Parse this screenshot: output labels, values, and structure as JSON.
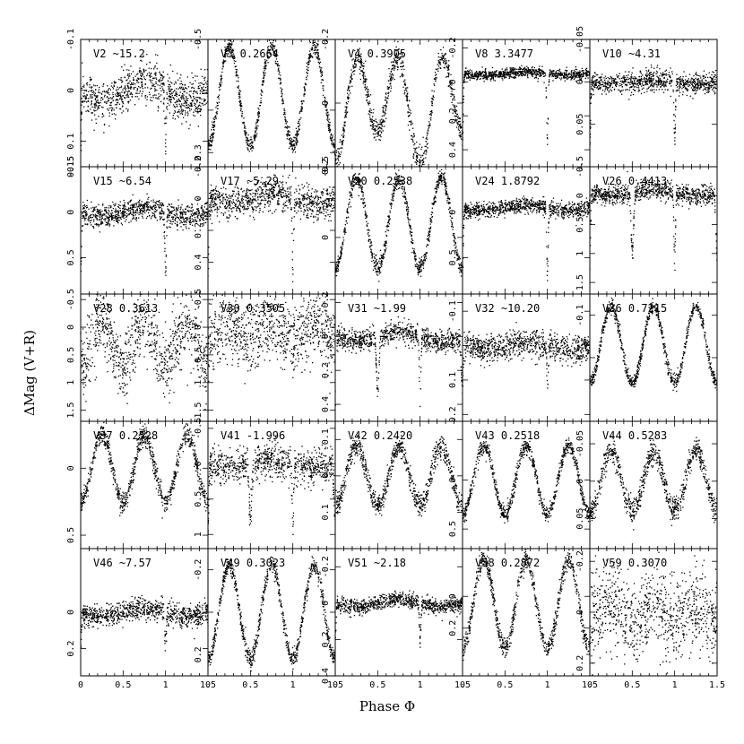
{
  "chart_data": {
    "type": "scatter",
    "xlabel": "Phase Φ",
    "ylabel": "ΔMag (V+R)",
    "xlim": [
      0,
      1.5
    ],
    "x_ticks": [
      "0",
      "0.5",
      "1",
      "1.5"
    ],
    "grid": false,
    "panels": [
      {
        "name": "V2",
        "period": "~15.2",
        "ylim": [
          -0.1,
          0.15
        ],
        "yticks": [
          {
            "v": -0.1,
            "t": "-0.1"
          },
          {
            "v": 0,
            "t": "0"
          },
          {
            "v": 0.1,
            "t": "0.1"
          },
          {
            "v": 0.15,
            "t": "0.15"
          }
        ],
        "model": "ecl",
        "amp": 0.02,
        "depth": 0.1,
        "noise": 0.02,
        "base": 0.0
      },
      {
        "name": "V3",
        "period": "0.2664",
        "ylim": [
          -0.5,
          0.4
        ],
        "yticks": [
          {
            "v": -0.5,
            "t": "-0.5"
          },
          {
            "v": 0,
            "t": "0"
          },
          {
            "v": 0.3,
            "t": "0.3"
          }
        ],
        "model": "wuma",
        "amp": 0.35,
        "depth": 0,
        "noise": 0.03,
        "base": -0.1
      },
      {
        "name": "V4",
        "period": "0.3905",
        "ylim": [
          -0.2,
          0.2
        ],
        "yticks": [
          {
            "v": -0.2,
            "t": "-0.2"
          },
          {
            "v": 0,
            "t": "0"
          },
          {
            "v": 0.2,
            "t": "0.2"
          }
        ],
        "model": "wuma",
        "amp": 0.14,
        "depth": 0.05,
        "noise": 0.02,
        "base": 0.0
      },
      {
        "name": "V8",
        "period": "3.3477",
        "ylim": [
          -0.25,
          0.5
        ],
        "yticks": [
          {
            "v": -0.2,
            "t": "-0.2"
          },
          {
            "v": 0,
            "t": "0"
          },
          {
            "v": 0.2,
            "t": "0.2"
          },
          {
            "v": 0.4,
            "t": "0.4"
          }
        ],
        "model": "ecl",
        "amp": 0.01,
        "depth": 0.4,
        "noise": 0.015,
        "base": -0.05
      },
      {
        "name": "V10",
        "period": "~4.31",
        "ylim": [
          -0.05,
          0.1
        ],
        "yticks": [
          {
            "v": -0.05,
            "t": "-0.05"
          },
          {
            "v": 0,
            "t": "0"
          },
          {
            "v": 0.05,
            "t": "0.05"
          }
        ],
        "model": "ecl",
        "amp": 0.003,
        "depth": 0.07,
        "noise": 0.006,
        "base": 0.0
      },
      {
        "name": "V15",
        "period": "~6.54",
        "ylim": [
          -0.5,
          0.9
        ],
        "yticks": [
          {
            "v": -0.5,
            "t": "-0.5"
          },
          {
            "v": 0,
            "t": "0"
          },
          {
            "v": 0.5,
            "t": "0.5"
          }
        ],
        "model": "ecl",
        "amp": 0.05,
        "depth": 0.7,
        "noise": 0.06,
        "base": 0.0
      },
      {
        "name": "V17",
        "period": "~5.29",
        "ylim": [
          -0.2,
          0.6
        ],
        "yticks": [
          {
            "v": -0.2,
            "t": "-0.2"
          },
          {
            "v": 0,
            "t": "0"
          },
          {
            "v": 0.2,
            "t": "0.2"
          },
          {
            "v": 0.4,
            "t": "0.4"
          }
        ],
        "model": "ecl",
        "amp": 0.03,
        "depth": 0.45,
        "noise": 0.05,
        "base": 0.0
      },
      {
        "name": "V20",
        "period": "0.2538",
        "ylim": [
          -0.5,
          0.4
        ],
        "yticks": [
          {
            "v": -0.5,
            "t": "-0.5"
          },
          {
            "v": 0,
            "t": "0"
          }
        ],
        "model": "wuma",
        "amp": 0.32,
        "depth": 0,
        "noise": 0.03,
        "base": -0.1
      },
      {
        "name": "V24",
        "period": "1.8792",
        "ylim": [
          -0.5,
          0.9
        ],
        "yticks": [
          {
            "v": 0,
            "t": "0"
          },
          {
            "v": 0.5,
            "t": "0.5"
          }
        ],
        "model": "ecl",
        "amp": 0.03,
        "depth": 0.75,
        "noise": 0.04,
        "base": -0.05
      },
      {
        "name": "V26",
        "period": "0.4413",
        "ylim": [
          -0.5,
          1.7
        ],
        "yticks": [
          {
            "v": -0.5,
            "t": "-0.5"
          },
          {
            "v": 0,
            "t": "0"
          },
          {
            "v": 0.5,
            "t": "0.5"
          },
          {
            "v": 1,
            "t": "1"
          },
          {
            "v": 1.5,
            "t": "1.5"
          }
        ],
        "model": "ecl2",
        "amp": 0.05,
        "depth": 1.2,
        "noise": 0.08,
        "base": -0.05
      },
      {
        "name": "V28",
        "period": "0.3613",
        "ylim": [
          -0.6,
          1.7
        ],
        "yticks": [
          {
            "v": -0.5,
            "t": "-0.5"
          },
          {
            "v": 0,
            "t": "0"
          },
          {
            "v": 0.5,
            "t": "0.5"
          },
          {
            "v": 1,
            "t": "1"
          },
          {
            "v": 1.5,
            "t": "1.5"
          }
        ],
        "model": "wuma",
        "amp": 0.4,
        "depth": 0,
        "noise": 0.3,
        "base": 0.3
      },
      {
        "name": "V30",
        "period": "0.3505",
        "ylim": [
          -0.6,
          1.7
        ],
        "yticks": [
          {
            "v": -0.5,
            "t": "-0.5"
          },
          {
            "v": 0,
            "t": "0"
          },
          {
            "v": 0.5,
            "t": "0.5"
          },
          {
            "v": 1,
            "t": "1"
          },
          {
            "v": 1.5,
            "t": "1.5"
          }
        ],
        "model": "wuma",
        "amp": 0.15,
        "depth": 0,
        "noise": 0.3,
        "base": 0.1
      },
      {
        "name": "V31",
        "period": "~1.99",
        "ylim": [
          -0.25,
          0.5
        ],
        "yticks": [
          {
            "v": -0.2,
            "t": "-0.2"
          },
          {
            "v": 0,
            "t": "0"
          },
          {
            "v": 0.2,
            "t": "0.2"
          },
          {
            "v": 0.4,
            "t": "0.4"
          }
        ],
        "model": "ecl2",
        "amp": 0.03,
        "depth": 0.4,
        "noise": 0.03,
        "base": 0.0
      },
      {
        "name": "V32",
        "period": "~10.20",
        "ylim": [
          -0.15,
          0.22
        ],
        "yticks": [
          {
            "v": -0.1,
            "t": "-0.1"
          },
          {
            "v": 0,
            "t": "0"
          },
          {
            "v": 0.1,
            "t": "0.1"
          },
          {
            "v": 0.2,
            "t": "0.2"
          }
        ],
        "model": "ecl",
        "amp": 0.01,
        "depth": 0.1,
        "noise": 0.02,
        "base": 0.0
      },
      {
        "name": "V36",
        "period": "0.7215",
        "ylim": [
          -0.15,
          0.15
        ],
        "yticks": [
          {
            "v": -0.1,
            "t": "-0.1"
          },
          {
            "v": 0,
            "t": "0"
          }
        ],
        "model": "wuma",
        "amp": 0.09,
        "depth": 0,
        "noise": 0.008,
        "base": -0.03
      },
      {
        "name": "V37",
        "period": "0.2528",
        "ylim": [
          -0.35,
          0.6
        ],
        "yticks": [
          {
            "v": 0,
            "t": "0"
          },
          {
            "v": 0.5,
            "t": "0.5"
          }
        ],
        "model": "wuma",
        "amp": 0.25,
        "depth": 0,
        "noise": 0.04,
        "base": 0.0
      },
      {
        "name": "V41",
        "period": "-1.996",
        "ylim": [
          -0.6,
          1.2
        ],
        "yticks": [
          {
            "v": -0.5,
            "t": "-0.5"
          },
          {
            "v": 0,
            "t": "0"
          },
          {
            "v": 0.5,
            "t": "0.5"
          },
          {
            "v": 1,
            "t": "1"
          }
        ],
        "model": "ecl2",
        "amp": 0.05,
        "depth": 0.9,
        "noise": 0.12,
        "base": 0.0
      },
      {
        "name": "V42",
        "period": "0.2420",
        "ylim": [
          -0.15,
          0.2
        ],
        "yticks": [
          {
            "v": -0.1,
            "t": "-0.1"
          },
          {
            "v": 0,
            "t": "0"
          },
          {
            "v": 0.1,
            "t": "0.1"
          }
        ],
        "model": "wuma",
        "amp": 0.08,
        "depth": 0,
        "noise": 0.015,
        "base": 0.0
      },
      {
        "name": "V43",
        "period": "0.2518",
        "ylim": [
          -0.6,
          0.7
        ],
        "yticks": [
          {
            "v": 0,
            "t": "0"
          },
          {
            "v": 0.5,
            "t": "0.5"
          }
        ],
        "model": "wuma",
        "amp": 0.35,
        "depth": 0,
        "noise": 0.04,
        "base": 0.0
      },
      {
        "name": "V44",
        "period": "0.5283",
        "ylim": [
          -0.08,
          0.09
        ],
        "yticks": [
          {
            "v": -0.05,
            "t": "-0.05"
          },
          {
            "v": 0,
            "t": "0"
          },
          {
            "v": 0.05,
            "t": "0.05"
          }
        ],
        "model": "wuma",
        "amp": 0.04,
        "depth": 0,
        "noise": 0.008,
        "base": 0.0
      },
      {
        "name": "V46",
        "period": "~7.57",
        "ylim": [
          -0.35,
          0.35
        ],
        "yticks": [
          {
            "v": 0,
            "t": "0"
          },
          {
            "v": 0.2,
            "t": "0.2"
          }
        ],
        "model": "ecl",
        "amp": 0.02,
        "depth": 0.2,
        "noise": 0.03,
        "base": 0.0
      },
      {
        "name": "V49",
        "period": "0.3023",
        "ylim": [
          -0.3,
          0.3
        ],
        "yticks": [
          {
            "v": -0.2,
            "t": "-0.2"
          },
          {
            "v": 0,
            "t": "0"
          },
          {
            "v": 0.2,
            "t": "0.2"
          }
        ],
        "model": "wuma",
        "amp": 0.22,
        "depth": 0,
        "noise": 0.02,
        "base": 0.0
      },
      {
        "name": "V51",
        "period": "~2.18",
        "ylim": [
          -0.3,
          0.4
        ],
        "yticks": [
          {
            "v": -0.2,
            "t": "-0.2"
          },
          {
            "v": 0,
            "t": "0"
          },
          {
            "v": 0.2,
            "t": "0.2"
          },
          {
            "v": 0.4,
            "t": "0.4"
          }
        ],
        "model": "ecl",
        "amp": 0.02,
        "depth": 0.2,
        "noise": 0.02,
        "base": 0.0
      },
      {
        "name": "V58",
        "period": "0.2872",
        "ylim": [
          -0.3,
          0.5
        ],
        "yticks": [
          {
            "v": 0,
            "t": "0"
          },
          {
            "v": 0.2,
            "t": "0.2"
          }
        ],
        "model": "wuma",
        "amp": 0.28,
        "depth": 0,
        "noise": 0.03,
        "base": 0.05
      },
      {
        "name": "V59",
        "period": "0.3070",
        "ylim": [
          -0.25,
          0.25
        ],
        "yticks": [
          {
            "v": -0.2,
            "t": "-0.2"
          },
          {
            "v": 0,
            "t": "0"
          },
          {
            "v": 0.2,
            "t": "0.2"
          }
        ],
        "model": "wuma",
        "amp": 0.03,
        "depth": 0,
        "noise": 0.08,
        "base": 0.0
      }
    ]
  }
}
